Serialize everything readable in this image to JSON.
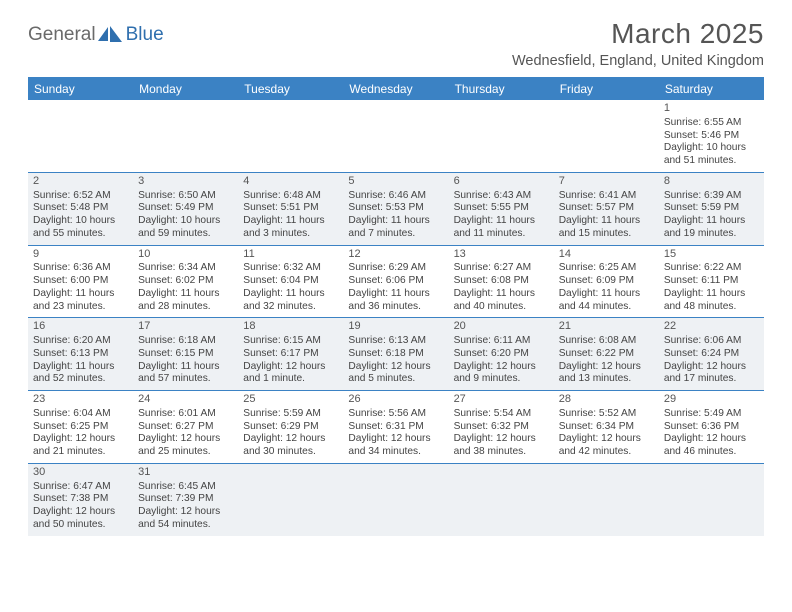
{
  "logo": {
    "part1": "General",
    "part2": "Blue"
  },
  "title": "March 2025",
  "subtitle": "Wednesfield, England, United Kingdom",
  "colors": {
    "header_bg": "#3b82c4",
    "header_fg": "#ffffff",
    "alt_row_bg": "#eef1f4",
    "page_bg": "#ffffff",
    "text": "#444444",
    "logo_gray": "#6a6a6a",
    "logo_blue": "#2f6fae"
  },
  "day_names": [
    "Sunday",
    "Monday",
    "Tuesday",
    "Wednesday",
    "Thursday",
    "Friday",
    "Saturday"
  ],
  "weeks": [
    [
      null,
      null,
      null,
      null,
      null,
      null,
      {
        "n": "1",
        "sr": "Sunrise: 6:55 AM",
        "ss": "Sunset: 5:46 PM",
        "dl1": "Daylight: 10 hours",
        "dl2": "and 51 minutes."
      }
    ],
    [
      {
        "n": "2",
        "sr": "Sunrise: 6:52 AM",
        "ss": "Sunset: 5:48 PM",
        "dl1": "Daylight: 10 hours",
        "dl2": "and 55 minutes."
      },
      {
        "n": "3",
        "sr": "Sunrise: 6:50 AM",
        "ss": "Sunset: 5:49 PM",
        "dl1": "Daylight: 10 hours",
        "dl2": "and 59 minutes."
      },
      {
        "n": "4",
        "sr": "Sunrise: 6:48 AM",
        "ss": "Sunset: 5:51 PM",
        "dl1": "Daylight: 11 hours",
        "dl2": "and 3 minutes."
      },
      {
        "n": "5",
        "sr": "Sunrise: 6:46 AM",
        "ss": "Sunset: 5:53 PM",
        "dl1": "Daylight: 11 hours",
        "dl2": "and 7 minutes."
      },
      {
        "n": "6",
        "sr": "Sunrise: 6:43 AM",
        "ss": "Sunset: 5:55 PM",
        "dl1": "Daylight: 11 hours",
        "dl2": "and 11 minutes."
      },
      {
        "n": "7",
        "sr": "Sunrise: 6:41 AM",
        "ss": "Sunset: 5:57 PM",
        "dl1": "Daylight: 11 hours",
        "dl2": "and 15 minutes."
      },
      {
        "n": "8",
        "sr": "Sunrise: 6:39 AM",
        "ss": "Sunset: 5:59 PM",
        "dl1": "Daylight: 11 hours",
        "dl2": "and 19 minutes."
      }
    ],
    [
      {
        "n": "9",
        "sr": "Sunrise: 6:36 AM",
        "ss": "Sunset: 6:00 PM",
        "dl1": "Daylight: 11 hours",
        "dl2": "and 23 minutes."
      },
      {
        "n": "10",
        "sr": "Sunrise: 6:34 AM",
        "ss": "Sunset: 6:02 PM",
        "dl1": "Daylight: 11 hours",
        "dl2": "and 28 minutes."
      },
      {
        "n": "11",
        "sr": "Sunrise: 6:32 AM",
        "ss": "Sunset: 6:04 PM",
        "dl1": "Daylight: 11 hours",
        "dl2": "and 32 minutes."
      },
      {
        "n": "12",
        "sr": "Sunrise: 6:29 AM",
        "ss": "Sunset: 6:06 PM",
        "dl1": "Daylight: 11 hours",
        "dl2": "and 36 minutes."
      },
      {
        "n": "13",
        "sr": "Sunrise: 6:27 AM",
        "ss": "Sunset: 6:08 PM",
        "dl1": "Daylight: 11 hours",
        "dl2": "and 40 minutes."
      },
      {
        "n": "14",
        "sr": "Sunrise: 6:25 AM",
        "ss": "Sunset: 6:09 PM",
        "dl1": "Daylight: 11 hours",
        "dl2": "and 44 minutes."
      },
      {
        "n": "15",
        "sr": "Sunrise: 6:22 AM",
        "ss": "Sunset: 6:11 PM",
        "dl1": "Daylight: 11 hours",
        "dl2": "and 48 minutes."
      }
    ],
    [
      {
        "n": "16",
        "sr": "Sunrise: 6:20 AM",
        "ss": "Sunset: 6:13 PM",
        "dl1": "Daylight: 11 hours",
        "dl2": "and 52 minutes."
      },
      {
        "n": "17",
        "sr": "Sunrise: 6:18 AM",
        "ss": "Sunset: 6:15 PM",
        "dl1": "Daylight: 11 hours",
        "dl2": "and 57 minutes."
      },
      {
        "n": "18",
        "sr": "Sunrise: 6:15 AM",
        "ss": "Sunset: 6:17 PM",
        "dl1": "Daylight: 12 hours",
        "dl2": "and 1 minute."
      },
      {
        "n": "19",
        "sr": "Sunrise: 6:13 AM",
        "ss": "Sunset: 6:18 PM",
        "dl1": "Daylight: 12 hours",
        "dl2": "and 5 minutes."
      },
      {
        "n": "20",
        "sr": "Sunrise: 6:11 AM",
        "ss": "Sunset: 6:20 PM",
        "dl1": "Daylight: 12 hours",
        "dl2": "and 9 minutes."
      },
      {
        "n": "21",
        "sr": "Sunrise: 6:08 AM",
        "ss": "Sunset: 6:22 PM",
        "dl1": "Daylight: 12 hours",
        "dl2": "and 13 minutes."
      },
      {
        "n": "22",
        "sr": "Sunrise: 6:06 AM",
        "ss": "Sunset: 6:24 PM",
        "dl1": "Daylight: 12 hours",
        "dl2": "and 17 minutes."
      }
    ],
    [
      {
        "n": "23",
        "sr": "Sunrise: 6:04 AM",
        "ss": "Sunset: 6:25 PM",
        "dl1": "Daylight: 12 hours",
        "dl2": "and 21 minutes."
      },
      {
        "n": "24",
        "sr": "Sunrise: 6:01 AM",
        "ss": "Sunset: 6:27 PM",
        "dl1": "Daylight: 12 hours",
        "dl2": "and 25 minutes."
      },
      {
        "n": "25",
        "sr": "Sunrise: 5:59 AM",
        "ss": "Sunset: 6:29 PM",
        "dl1": "Daylight: 12 hours",
        "dl2": "and 30 minutes."
      },
      {
        "n": "26",
        "sr": "Sunrise: 5:56 AM",
        "ss": "Sunset: 6:31 PM",
        "dl1": "Daylight: 12 hours",
        "dl2": "and 34 minutes."
      },
      {
        "n": "27",
        "sr": "Sunrise: 5:54 AM",
        "ss": "Sunset: 6:32 PM",
        "dl1": "Daylight: 12 hours",
        "dl2": "and 38 minutes."
      },
      {
        "n": "28",
        "sr": "Sunrise: 5:52 AM",
        "ss": "Sunset: 6:34 PM",
        "dl1": "Daylight: 12 hours",
        "dl2": "and 42 minutes."
      },
      {
        "n": "29",
        "sr": "Sunrise: 5:49 AM",
        "ss": "Sunset: 6:36 PM",
        "dl1": "Daylight: 12 hours",
        "dl2": "and 46 minutes."
      }
    ],
    [
      {
        "n": "30",
        "sr": "Sunrise: 6:47 AM",
        "ss": "Sunset: 7:38 PM",
        "dl1": "Daylight: 12 hours",
        "dl2": "and 50 minutes."
      },
      {
        "n": "31",
        "sr": "Sunrise: 6:45 AM",
        "ss": "Sunset: 7:39 PM",
        "dl1": "Daylight: 12 hours",
        "dl2": "and 54 minutes."
      },
      null,
      null,
      null,
      null,
      null
    ]
  ]
}
